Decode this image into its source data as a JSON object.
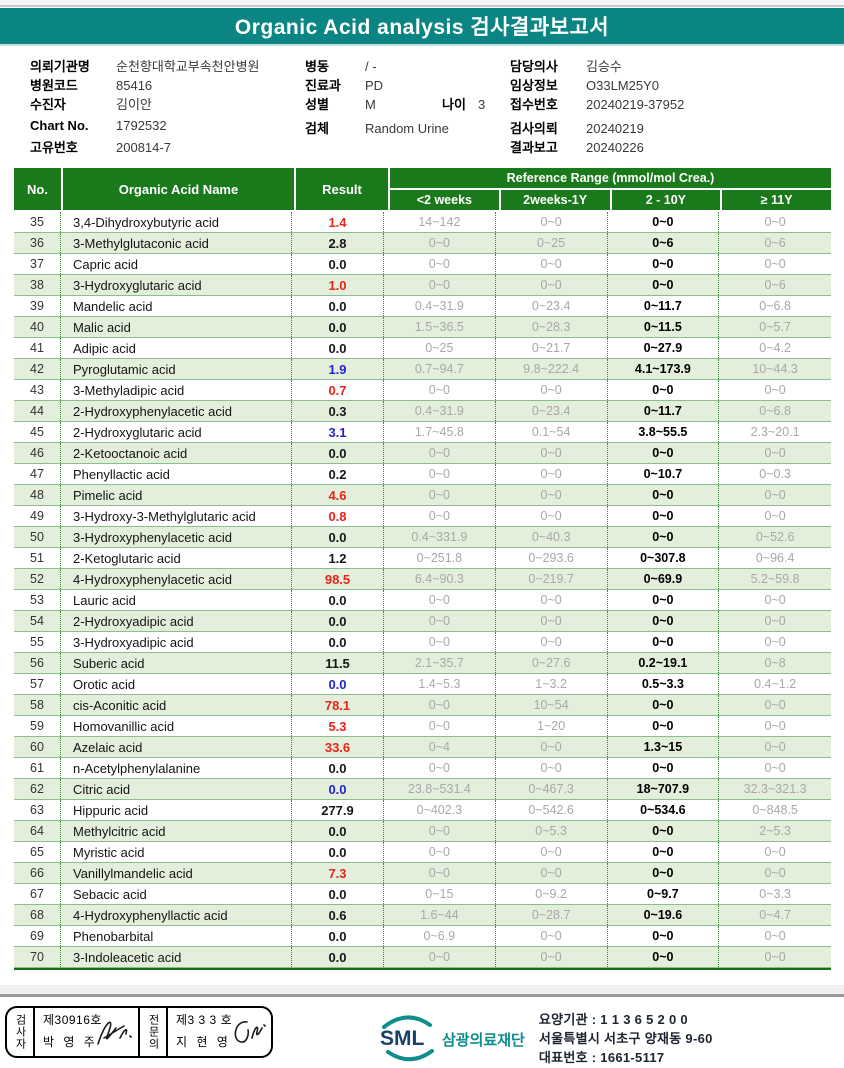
{
  "title": "Organic Acid analysis 검사결과보고서",
  "colors": {
    "title_bar": "#0a8583",
    "table_header_green": "#1a7a1b",
    "row_alternate": "#e3efda",
    "result_high_red": "#e82318",
    "result_low_blue": "#2424cf",
    "reference_gray": "#a8a8a8"
  },
  "patient_info": {
    "left": [
      {
        "label": "의뢰기관명",
        "value": "순천향대학교부속천안병원"
      },
      {
        "label": "병원코드",
        "value": "85416"
      },
      {
        "label": "수진자",
        "value": "김이안"
      },
      {
        "label": "Chart No.",
        "value": "1792532",
        "gap": true
      },
      {
        "label": "고유번호",
        "value": "200814-7"
      }
    ],
    "middle": [
      {
        "label": "병동",
        "value": "/ -"
      },
      {
        "label": "진료과",
        "value": "PD"
      },
      {
        "label": "성별",
        "value": "M",
        "label2": "나이",
        "value2": "3"
      },
      {
        "label": "검체",
        "value": "Random Urine",
        "gap": true
      }
    ],
    "right": [
      {
        "label": "담당의사",
        "value": "김승수"
      },
      {
        "label": "임상정보",
        "value": "O33LM25Y0"
      },
      {
        "label": "접수번호",
        "value": "20240219-37952"
      },
      {
        "label": "검사의뢰",
        "value": "20240219",
        "gap": true
      },
      {
        "label": "결과보고",
        "value": "20240226"
      }
    ]
  },
  "table": {
    "col_no": "No.",
    "col_name": "Organic Acid Name",
    "col_result": "Result",
    "ref_header": "Reference Range (mmol/mol Crea.)",
    "ref_cols": [
      "<2 weeks",
      "2weeks-1Y",
      "2 - 10Y",
      "≥ 11Y"
    ],
    "rows": [
      {
        "no": 35,
        "name": "3,4-Dihydroxybutyric acid",
        "result": "1.4",
        "flag": "red",
        "ranges": [
          "14~142",
          "0~0",
          "0~0",
          "0~0"
        ]
      },
      {
        "no": 36,
        "name": "3-Methylglutaconic acid",
        "result": "2.8",
        "flag": "",
        "ranges": [
          "0~0",
          "0~25",
          "0~6",
          "0~6"
        ]
      },
      {
        "no": 37,
        "name": "Capric acid",
        "result": "0.0",
        "flag": "",
        "ranges": [
          "0~0",
          "0~0",
          "0~0",
          "0~0"
        ]
      },
      {
        "no": 38,
        "name": "3-Hydroxyglutaric acid",
        "result": "1.0",
        "flag": "red",
        "ranges": [
          "0~0",
          "0~0",
          "0~0",
          "0~6"
        ]
      },
      {
        "no": 39,
        "name": "Mandelic acid",
        "result": "0.0",
        "flag": "",
        "ranges": [
          "0.4~31.9",
          "0~23.4",
          "0~11.7",
          "0~6.8"
        ]
      },
      {
        "no": 40,
        "name": "Malic acid",
        "result": "0.0",
        "flag": "",
        "ranges": [
          "1.5~36.5",
          "0~28.3",
          "0~11.5",
          "0~5.7"
        ]
      },
      {
        "no": 41,
        "name": "Adipic acid",
        "result": "0.0",
        "flag": "",
        "ranges": [
          "0~25",
          "0~21.7",
          "0~27.9",
          "0~4.2"
        ]
      },
      {
        "no": 42,
        "name": "Pyroglutamic acid",
        "result": "1.9",
        "flag": "blue",
        "ranges": [
          "0.7~94.7",
          "9.8~222.4",
          "4.1~173.9",
          "10~44.3"
        ]
      },
      {
        "no": 43,
        "name": "3-Methyladipic acid",
        "result": "0.7",
        "flag": "red",
        "ranges": [
          "0~0",
          "0~0",
          "0~0",
          "0~0"
        ]
      },
      {
        "no": 44,
        "name": "2-Hydroxyphenylacetic acid",
        "result": "0.3",
        "flag": "",
        "ranges": [
          "0.4~31.9",
          "0~23.4",
          "0~11.7",
          "0~6.8"
        ]
      },
      {
        "no": 45,
        "name": "2-Hydroxyglutaric acid",
        "result": "3.1",
        "flag": "blue",
        "ranges": [
          "1.7~45.8",
          "0.1~54",
          "3.8~55.5",
          "2.3~20.1"
        ]
      },
      {
        "no": 46,
        "name": "2-Ketooctanoic acid",
        "result": "0.0",
        "flag": "",
        "ranges": [
          "0~0",
          "0~0",
          "0~0",
          "0~0"
        ]
      },
      {
        "no": 47,
        "name": "Phenyllactic acid",
        "result": "0.2",
        "flag": "",
        "ranges": [
          "0~0",
          "0~0",
          "0~10.7",
          "0~0.3"
        ]
      },
      {
        "no": 48,
        "name": "Pimelic acid",
        "result": "4.6",
        "flag": "red",
        "ranges": [
          "0~0",
          "0~0",
          "0~0",
          "0~0"
        ]
      },
      {
        "no": 49,
        "name": "3-Hydroxy-3-Methylglutaric acid",
        "result": "0.8",
        "flag": "red",
        "ranges": [
          "0~0",
          "0~0",
          "0~0",
          "0~0"
        ]
      },
      {
        "no": 50,
        "name": "3-Hydroxyphenylacetic acid",
        "result": "0.0",
        "flag": "",
        "ranges": [
          "0.4~331.9",
          "0~40.3",
          "0~0",
          "0~52.6"
        ]
      },
      {
        "no": 51,
        "name": "2-Ketoglutaric acid",
        "result": "1.2",
        "flag": "",
        "ranges": [
          "0~251.8",
          "0~293.6",
          "0~307.8",
          "0~96.4"
        ]
      },
      {
        "no": 52,
        "name": "4-Hydroxyphenylacetic acid",
        "result": "98.5",
        "flag": "red",
        "ranges": [
          "6.4~90.3",
          "0~219.7",
          "0~69.9",
          "5.2~59.8"
        ]
      },
      {
        "no": 53,
        "name": "Lauric acid",
        "result": "0.0",
        "flag": "",
        "ranges": [
          "0~0",
          "0~0",
          "0~0",
          "0~0"
        ]
      },
      {
        "no": 54,
        "name": "2-Hydroxyadipic acid",
        "result": "0.0",
        "flag": "",
        "ranges": [
          "0~0",
          "0~0",
          "0~0",
          "0~0"
        ]
      },
      {
        "no": 55,
        "name": "3-Hydroxyadipic acid",
        "result": "0.0",
        "flag": "",
        "ranges": [
          "0~0",
          "0~0",
          "0~0",
          "0~0"
        ]
      },
      {
        "no": 56,
        "name": "Suberic acid",
        "result": "11.5",
        "flag": "",
        "ranges": [
          "2.1~35.7",
          "0~27.6",
          "0.2~19.1",
          "0~8"
        ]
      },
      {
        "no": 57,
        "name": "Orotic acid",
        "result": "0.0",
        "flag": "blue",
        "ranges": [
          "1.4~5.3",
          "1~3.2",
          "0.5~3.3",
          "0.4~1.2"
        ]
      },
      {
        "no": 58,
        "name": "cis-Aconitic acid",
        "result": "78.1",
        "flag": "red",
        "ranges": [
          "0~0",
          "10~54",
          "0~0",
          "0~0"
        ]
      },
      {
        "no": 59,
        "name": "Homovanillic acid",
        "result": "5.3",
        "flag": "red",
        "ranges": [
          "0~0",
          "1~20",
          "0~0",
          "0~0"
        ]
      },
      {
        "no": 60,
        "name": "Azelaic acid",
        "result": "33.6",
        "flag": "red",
        "ranges": [
          "0~4",
          "0~0",
          "1.3~15",
          "0~0"
        ]
      },
      {
        "no": 61,
        "name": "n-Acetylphenylalanine",
        "result": "0.0",
        "flag": "",
        "ranges": [
          "0~0",
          "0~0",
          "0~0",
          "0~0"
        ]
      },
      {
        "no": 62,
        "name": "Citric acid",
        "result": "0.0",
        "flag": "blue",
        "ranges": [
          "23.8~531.4",
          "0~467.3",
          "18~707.9",
          "32.3~321.3"
        ]
      },
      {
        "no": 63,
        "name": "Hippuric acid",
        "result": "277.9",
        "flag": "",
        "ranges": [
          "0~402.3",
          "0~542.6",
          "0~534.6",
          "0~848.5"
        ]
      },
      {
        "no": 64,
        "name": "Methylcitric acid",
        "result": "0.0",
        "flag": "",
        "ranges": [
          "0~0",
          "0~5.3",
          "0~0",
          "2~5.3"
        ]
      },
      {
        "no": 65,
        "name": "Myristic acid",
        "result": "0.0",
        "flag": "",
        "ranges": [
          "0~0",
          "0~0",
          "0~0",
          "0~0"
        ]
      },
      {
        "no": 66,
        "name": "Vanillylmandelic acid",
        "result": "7.3",
        "flag": "red",
        "ranges": [
          "0~0",
          "0~0",
          "0~0",
          "0~0"
        ]
      },
      {
        "no": 67,
        "name": "Sebacic acid",
        "result": "0.0",
        "flag": "",
        "ranges": [
          "0~15",
          "0~9.2",
          "0~9.7",
          "0~3.3"
        ]
      },
      {
        "no": 68,
        "name": "4-Hydroxyphenyllactic acid",
        "result": "0.6",
        "flag": "",
        "ranges": [
          "1.6~44",
          "0~28.7",
          "0~19.6",
          "0~4.7"
        ]
      },
      {
        "no": 69,
        "name": "Phenobarbital",
        "result": "0.0",
        "flag": "",
        "ranges": [
          "0~6.9",
          "0~0",
          "0~0",
          "0~0"
        ]
      },
      {
        "no": 70,
        "name": "3-Indoleacetic acid",
        "result": "0.0",
        "flag": "",
        "ranges": [
          "0~0",
          "0~0",
          "0~0",
          "0~0"
        ]
      }
    ]
  },
  "footer": {
    "examiner": {
      "role": "검사자",
      "cert": "제30916호",
      "name": "박 영 주"
    },
    "specialist": {
      "role": "전문의",
      "cert": "제3 3 3 호",
      "name": "지 현 영"
    },
    "logo": {
      "sml": "SML",
      "org": "삼광의료재단"
    },
    "info": [
      "요양기관 : 1 1 3 6 5 2 0 0",
      "서울특별시 서초구 양재동 9-60",
      "대표번호 : 1661-5117"
    ]
  }
}
